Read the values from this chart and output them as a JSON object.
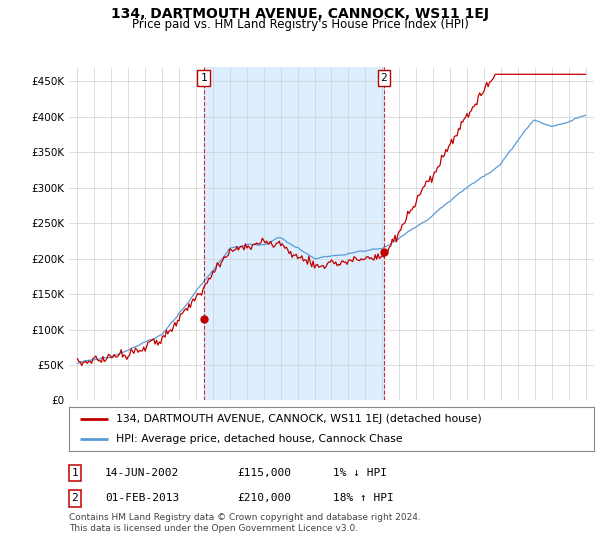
{
  "title": "134, DARTMOUTH AVENUE, CANNOCK, WS11 1EJ",
  "subtitle": "Price paid vs. HM Land Registry's House Price Index (HPI)",
  "ylabel_ticks": [
    "£0",
    "£50K",
    "£100K",
    "£150K",
    "£200K",
    "£250K",
    "£300K",
    "£350K",
    "£400K",
    "£450K"
  ],
  "ytick_values": [
    0,
    50000,
    100000,
    150000,
    200000,
    250000,
    300000,
    350000,
    400000,
    450000
  ],
  "ylim": [
    0,
    470000
  ],
  "xlim_start": 1994.5,
  "xlim_end": 2025.5,
  "marker1_x": 2002.45,
  "marker1_y": 115000,
  "marker2_x": 2013.08,
  "marker2_y": 210000,
  "legend_line1": "134, DARTMOUTH AVENUE, CANNOCK, WS11 1EJ (detached house)",
  "legend_line2": "HPI: Average price, detached house, Cannock Chase",
  "table_row1_num": "1",
  "table_row1_date": "14-JUN-2002",
  "table_row1_price": "£115,000",
  "table_row1_hpi": "1% ↓ HPI",
  "table_row2_num": "2",
  "table_row2_date": "01-FEB-2013",
  "table_row2_price": "£210,000",
  "table_row2_hpi": "18% ↑ HPI",
  "footnote_line1": "Contains HM Land Registry data © Crown copyright and database right 2024.",
  "footnote_line2": "This data is licensed under the Open Government Licence v3.0.",
  "hpi_color": "#5b9bd5",
  "price_color": "#c00000",
  "shade_color": "#ddeeff",
  "background_color": "#ffffff",
  "grid_color": "#d0d0d0"
}
